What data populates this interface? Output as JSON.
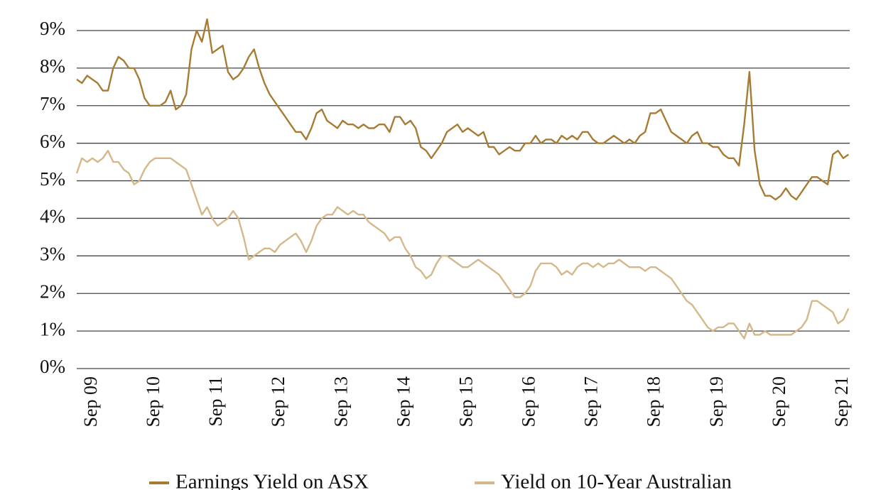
{
  "chart_data": {
    "type": "line",
    "x": [
      "Jun 09",
      "Jul 09",
      "Aug 09",
      "Sep 09",
      "Oct 09",
      "Nov 09",
      "Dec 09",
      "Jan 10",
      "Feb 10",
      "Mar 10",
      "Apr 10",
      "May 10",
      "Jun 10",
      "Jul 10",
      "Aug 10",
      "Sep 10",
      "Oct 10",
      "Nov 10",
      "Dec 10",
      "Jan 11",
      "Feb 11",
      "Mar 11",
      "Apr 11",
      "May 11",
      "Jun 11",
      "Jul 11",
      "Aug 11",
      "Sep 11",
      "Oct 11",
      "Nov 11",
      "Dec 11",
      "Jan 12",
      "Feb 12",
      "Mar 12",
      "Apr 12",
      "May 12",
      "Jun 12",
      "Jul 12",
      "Aug 12",
      "Sep 12",
      "Oct 12",
      "Nov 12",
      "Dec 12",
      "Jan 13",
      "Feb 13",
      "Mar 13",
      "Apr 13",
      "May 13",
      "Jun 13",
      "Jul 13",
      "Aug 13",
      "Sep 13",
      "Oct 13",
      "Nov 13",
      "Dec 13",
      "Jan 14",
      "Feb 14",
      "Mar 14",
      "Apr 14",
      "May 14",
      "Jun 14",
      "Jul 14",
      "Aug 14",
      "Sep 14",
      "Oct 14",
      "Nov 14",
      "Dec 14",
      "Jan 15",
      "Feb 15",
      "Mar 15",
      "Apr 15",
      "May 15",
      "Jun 15",
      "Jul 15",
      "Aug 15",
      "Sep 15",
      "Oct 15",
      "Nov 15",
      "Dec 15",
      "Jan 16",
      "Feb 16",
      "Mar 16",
      "Apr 16",
      "May 16",
      "Jun 16",
      "Jul 16",
      "Aug 16",
      "Sep 16",
      "Oct 16",
      "Nov 16",
      "Dec 16",
      "Jan 17",
      "Feb 17",
      "Mar 17",
      "Apr 17",
      "May 17",
      "Jun 17",
      "Jul 17",
      "Aug 17",
      "Sep 17",
      "Oct 17",
      "Nov 17",
      "Dec 17",
      "Jan 18",
      "Feb 18",
      "Mar 18",
      "Apr 18",
      "May 18",
      "Jun 18",
      "Jul 18",
      "Aug 18",
      "Sep 18",
      "Oct 18",
      "Nov 18",
      "Dec 18",
      "Jan 19",
      "Feb 19",
      "Mar 19",
      "Apr 19",
      "May 19",
      "Jun 19",
      "Jul 19",
      "Aug 19",
      "Sep 19",
      "Oct 19",
      "Nov 19",
      "Dec 19",
      "Jan 20",
      "Feb 20",
      "Mar 20",
      "Apr 20",
      "May 20",
      "Jun 20",
      "Jul 20",
      "Aug 20",
      "Sep 20",
      "Oct 20",
      "Nov 20",
      "Dec 20",
      "Jan 21",
      "Feb 21",
      "Mar 21",
      "Apr 21",
      "May 21",
      "Jun 21",
      "Jul 21",
      "Aug 21",
      "Sep 21",
      "Oct 21"
    ],
    "xticks": [
      "Sep 09",
      "Sep 10",
      "Sep 11",
      "Sep 12",
      "Sep 13",
      "Sep 14",
      "Sep 15",
      "Sep 16",
      "Sep 17",
      "Sep 18",
      "Sep 19",
      "Sep 20",
      "Sep 21"
    ],
    "ylim": [
      0,
      9
    ],
    "yticks": [
      {
        "value": 0,
        "label": "0%"
      },
      {
        "value": 1,
        "label": "1%"
      },
      {
        "value": 2,
        "label": "2%"
      },
      {
        "value": 3,
        "label": "3%"
      },
      {
        "value": 4,
        "label": "4%"
      },
      {
        "value": 5,
        "label": "5%"
      },
      {
        "value": 6,
        "label": "6%"
      },
      {
        "value": 7,
        "label": "7%"
      },
      {
        "value": 8,
        "label": "8%"
      },
      {
        "value": 9,
        "label": "9%"
      }
    ],
    "grid": true,
    "legend": "bottom",
    "series": [
      {
        "name": "Earnings Yield on ASX",
        "color": "#a87b34",
        "values": [
          7.7,
          7.6,
          7.8,
          7.7,
          7.6,
          7.4,
          7.4,
          8.0,
          8.3,
          8.2,
          8.0,
          8.0,
          7.7,
          7.2,
          7.0,
          7.0,
          7.0,
          7.1,
          7.4,
          6.9,
          7.0,
          7.3,
          8.5,
          9.0,
          8.7,
          9.3,
          8.4,
          8.5,
          8.6,
          7.9,
          7.7,
          7.8,
          8.0,
          8.3,
          8.5,
          8.0,
          7.6,
          7.3,
          7.1,
          6.9,
          6.7,
          6.5,
          6.3,
          6.3,
          6.1,
          6.4,
          6.8,
          6.9,
          6.6,
          6.5,
          6.4,
          6.6,
          6.5,
          6.5,
          6.4,
          6.5,
          6.4,
          6.4,
          6.5,
          6.5,
          6.3,
          6.7,
          6.7,
          6.5,
          6.6,
          6.4,
          5.9,
          5.8,
          5.6,
          5.8,
          6.0,
          6.3,
          6.4,
          6.5,
          6.3,
          6.4,
          6.3,
          6.2,
          6.3,
          5.9,
          5.9,
          5.7,
          5.8,
          5.9,
          5.8,
          5.8,
          6.0,
          6.0,
          6.2,
          6.0,
          6.1,
          6.1,
          6.0,
          6.2,
          6.1,
          6.2,
          6.1,
          6.3,
          6.3,
          6.1,
          6.0,
          6.0,
          6.1,
          6.2,
          6.1,
          6.0,
          6.1,
          6.0,
          6.2,
          6.3,
          6.8,
          6.8,
          6.9,
          6.6,
          6.3,
          6.2,
          6.1,
          6.0,
          6.2,
          6.3,
          6.0,
          6.0,
          5.9,
          5.9,
          5.7,
          5.6,
          5.6,
          5.4,
          6.5,
          7.9,
          5.8,
          4.9,
          4.6,
          4.6,
          4.5,
          4.6,
          4.8,
          4.6,
          4.5,
          4.7,
          4.9,
          5.1,
          5.1,
          5.0,
          4.9,
          5.7,
          5.8,
          5.6,
          5.7
        ]
      },
      {
        "name": "Yield on 10-Year Australian",
        "color": "#d4b88a",
        "values": [
          5.2,
          5.6,
          5.5,
          5.6,
          5.5,
          5.6,
          5.8,
          5.5,
          5.5,
          5.3,
          5.2,
          4.9,
          5.0,
          5.3,
          5.5,
          5.6,
          5.6,
          5.6,
          5.6,
          5.5,
          5.4,
          5.3,
          4.9,
          4.5,
          4.1,
          4.3,
          4.0,
          3.8,
          3.9,
          4.0,
          4.2,
          4.0,
          3.5,
          2.9,
          3.0,
          3.1,
          3.2,
          3.2,
          3.1,
          3.3,
          3.4,
          3.5,
          3.6,
          3.4,
          3.1,
          3.4,
          3.8,
          4.0,
          4.1,
          4.1,
          4.3,
          4.2,
          4.1,
          4.2,
          4.1,
          4.1,
          3.9,
          3.8,
          3.7,
          3.6,
          3.4,
          3.5,
          3.5,
          3.2,
          3.0,
          2.7,
          2.6,
          2.4,
          2.5,
          2.8,
          3.0,
          3.0,
          2.9,
          2.8,
          2.7,
          2.7,
          2.8,
          2.9,
          2.8,
          2.7,
          2.6,
          2.5,
          2.3,
          2.1,
          1.9,
          1.9,
          2.0,
          2.2,
          2.6,
          2.8,
          2.8,
          2.8,
          2.7,
          2.5,
          2.6,
          2.5,
          2.7,
          2.8,
          2.8,
          2.7,
          2.8,
          2.7,
          2.8,
          2.8,
          2.9,
          2.8,
          2.7,
          2.7,
          2.7,
          2.6,
          2.7,
          2.7,
          2.6,
          2.5,
          2.4,
          2.2,
          2.0,
          1.8,
          1.7,
          1.5,
          1.3,
          1.1,
          1.0,
          1.1,
          1.1,
          1.2,
          1.2,
          1.0,
          0.8,
          1.2,
          0.9,
          0.9,
          1.0,
          0.9,
          0.9,
          0.9,
          0.9,
          0.9,
          1.0,
          1.1,
          1.3,
          1.8,
          1.8,
          1.7,
          1.6,
          1.5,
          1.2,
          1.3,
          1.6
        ]
      }
    ]
  }
}
